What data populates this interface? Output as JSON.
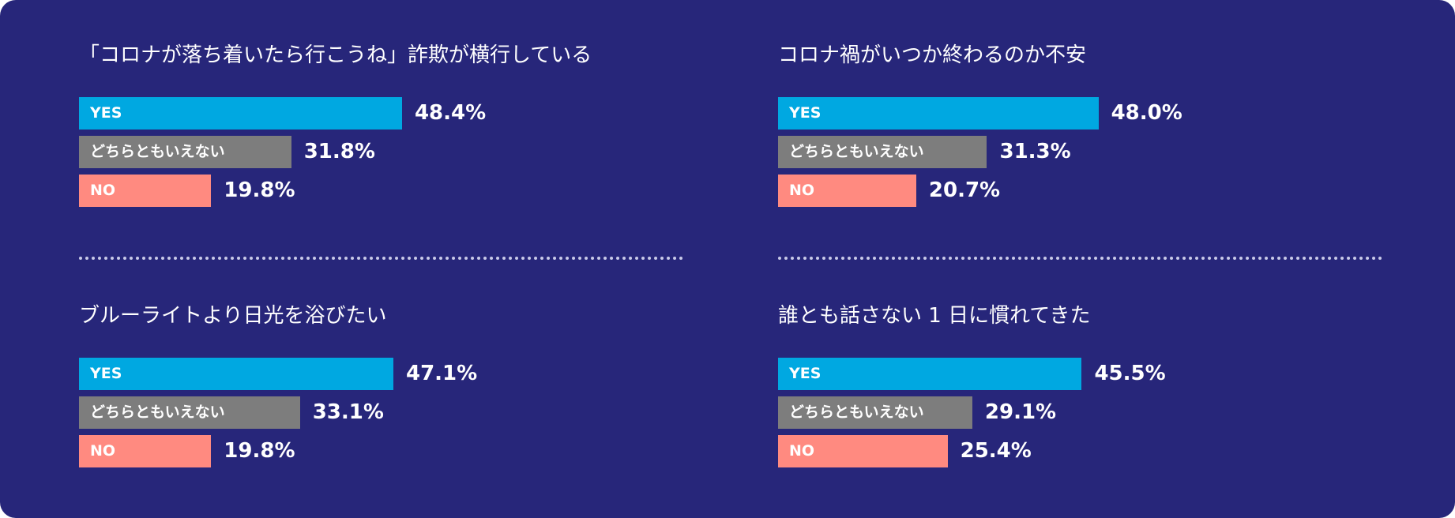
{
  "colors": {
    "background": "#27267a",
    "yes": "#00a8e1",
    "neutral": "#7d7d7d",
    "no": "#ff8a80"
  },
  "chart_data": [
    {
      "type": "bar",
      "orientation": "horizontal",
      "title": "「コロナが落ち着いたら行こうね」詐欺が横行している",
      "categories": [
        "YES",
        "どちらともいえない",
        "NO"
      ],
      "values": [
        48.4,
        31.8,
        19.8
      ],
      "labels": [
        "48.4%",
        "31.8%",
        "19.8%"
      ]
    },
    {
      "type": "bar",
      "orientation": "horizontal",
      "title": "コロナ禍がいつか終わるのか不安",
      "categories": [
        "YES",
        "どちらともいえない",
        "NO"
      ],
      "values": [
        48.0,
        31.3,
        20.7
      ],
      "labels": [
        "48.0%",
        "31.3%",
        "20.7%"
      ]
    },
    {
      "type": "bar",
      "orientation": "horizontal",
      "title": "ブルーライトより日光を浴びたい",
      "categories": [
        "YES",
        "どちらともいえない",
        "NO"
      ],
      "values": [
        47.1,
        33.1,
        19.8
      ],
      "labels": [
        "47.1%",
        "33.1%",
        "19.8%"
      ]
    },
    {
      "type": "bar",
      "orientation": "horizontal",
      "title": "誰とも話さない 1 日に慣れてきた",
      "categories": [
        "YES",
        "どちらともいえない",
        "NO"
      ],
      "values": [
        45.5,
        29.1,
        25.4
      ],
      "labels": [
        "45.5%",
        "29.1%",
        "25.4%"
      ]
    }
  ]
}
